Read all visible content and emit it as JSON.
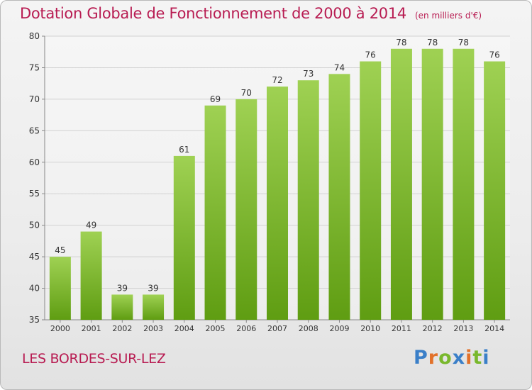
{
  "header": {
    "title": "Dotation Globale de Fonctionnement de 2000 à 2014",
    "subtitle": "(en milliers d'€)"
  },
  "footer": {
    "commune": "LES BORDES-SUR-LEZ",
    "logo_text": "Proxiti"
  },
  "colors": {
    "title": "#b81c52",
    "bar_top": "#9fd153",
    "bar_bottom": "#5f9d12",
    "grid": "#d2d2d2",
    "logo_letters": [
      "#3a7fc8",
      "#e2712a",
      "#79b82d",
      "#3a7fc8",
      "#e2712a",
      "#79b82d",
      "#3a7fc8"
    ]
  },
  "chart_data": {
    "type": "bar",
    "title": "Dotation Globale de Fonctionnement de 2000 à 2014",
    "subtitle": "(en milliers d'€)",
    "categories": [
      "2000",
      "2001",
      "2002",
      "2003",
      "2004",
      "2005",
      "2006",
      "2007",
      "2008",
      "2009",
      "2010",
      "2011",
      "2012",
      "2013",
      "2014"
    ],
    "values": [
      45,
      49,
      39,
      39,
      61,
      69,
      70,
      72,
      73,
      74,
      76,
      78,
      78,
      78,
      76
    ],
    "ylim": [
      35,
      80
    ],
    "yticks": [
      35,
      40,
      45,
      50,
      55,
      60,
      65,
      70,
      75,
      80
    ],
    "grid": true,
    "data_labels": true
  }
}
